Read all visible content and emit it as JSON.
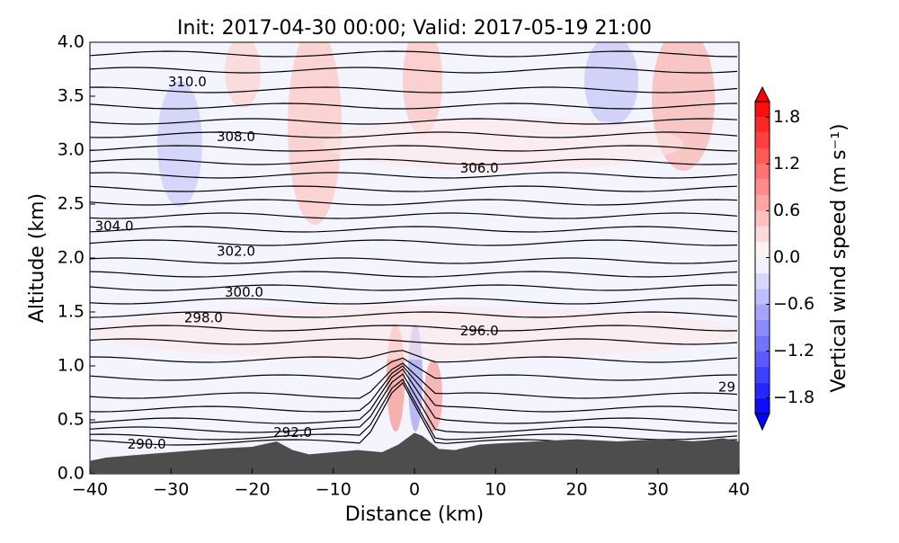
{
  "chart_data": {
    "type": "contour",
    "title": "Init: 2017-04-30 00:00; Valid: 2017-05-19 21:00",
    "x_label": "Distance (km)",
    "y_label": "Altitude (km)",
    "xlim": [
      -40,
      40
    ],
    "ylim": [
      0,
      4
    ],
    "xticks": [
      {
        "value": -40,
        "label": "−40"
      },
      {
        "value": -30,
        "label": "−30"
      },
      {
        "value": -20,
        "label": "−20"
      },
      {
        "value": -10,
        "label": "−10"
      },
      0,
      10,
      20,
      30,
      40
    ],
    "yticks": [
      {
        "value": 0,
        "label": "0.0"
      },
      0.5,
      {
        "value": 1,
        "label": "1.0"
      },
      1.5,
      {
        "value": 2,
        "label": "2.0"
      },
      2.5,
      {
        "value": 3,
        "label": "3.0"
      },
      3.5,
      {
        "value": 4,
        "label": "4.0"
      }
    ],
    "terrain": {
      "color": "#4d4d4d",
      "x": [
        -40,
        -38,
        -35,
        -30,
        -25,
        -20,
        -17,
        -15,
        -13,
        -10,
        -7,
        -4,
        -2,
        0,
        1,
        3,
        5,
        8,
        10,
        15,
        20,
        25,
        30,
        35,
        38,
        40
      ],
      "y": [
        0.12,
        0.15,
        0.17,
        0.2,
        0.23,
        0.25,
        0.3,
        0.22,
        0.18,
        0.2,
        0.22,
        0.2,
        0.27,
        0.38,
        0.35,
        0.23,
        0.22,
        0.27,
        0.28,
        0.3,
        0.32,
        0.3,
        0.32,
        0.3,
        0.33,
        0.3
      ]
    },
    "contour_labels": [
      {
        "text": "310.0",
        "x": -28,
        "y": 3.63
      },
      {
        "text": "308.0",
        "x": -22,
        "y": 3.12
      },
      {
        "text": "306.0",
        "x": 8,
        "y": 2.83
      },
      {
        "text": "304.0",
        "x": -37,
        "y": 2.29
      },
      {
        "text": "302.0",
        "x": -22,
        "y": 2.06
      },
      {
        "text": "300.0",
        "x": -21,
        "y": 1.68
      },
      {
        "text": "298.0",
        "x": -26,
        "y": 1.44
      },
      {
        "text": "296.0",
        "x": 8,
        "y": 1.32
      },
      {
        "text": "292.0",
        "x": -15,
        "y": 0.38
      },
      {
        "text": "290.0",
        "x": -33,
        "y": 0.27
      },
      {
        "text": "29",
        "x": 38.5,
        "y": 0.8
      }
    ],
    "colorbar": {
      "label": "Vertical wind speed (m s⁻¹)",
      "colormap": "bwr",
      "clim": [
        -2,
        2
      ],
      "step": 0.2,
      "ticks": [
        {
          "value": -1.8,
          "label": "−1.8"
        },
        {
          "value": -1.2,
          "label": "−1.2"
        },
        {
          "value": -0.6,
          "label": "−0.6"
        },
        {
          "value": 0,
          "label": "0.0"
        },
        0.6,
        1.2,
        1.8
      ]
    }
  }
}
